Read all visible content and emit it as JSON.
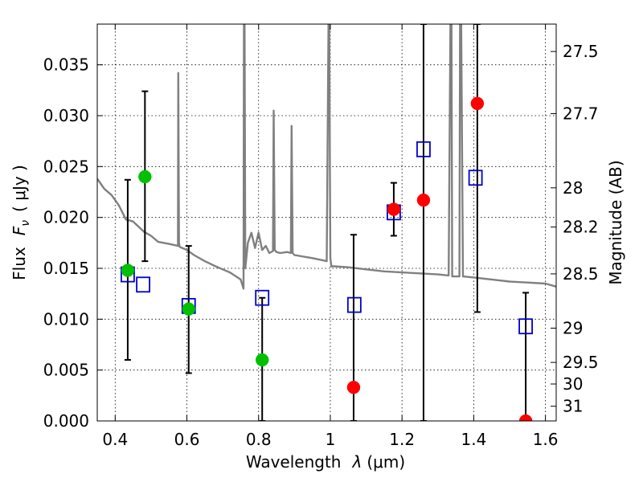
{
  "chart_data": {
    "type": "scatter",
    "title": "",
    "xlabel": "Wavelength  λ (μm)",
    "ylabel": "Flux  F_ν  ( μJy )",
    "ylabel_parts": {
      "flux": "Flux",
      "symbol": "F",
      "sub": "ν",
      "unit": "( μJy )"
    },
    "xlabel_parts": {
      "text": "Wavelength",
      "symbol": "λ",
      "unit": "(μm)"
    },
    "y2label": "Magnitude (AB)",
    "xlim": [
      0.35,
      1.63
    ],
    "ylim": [
      0.0,
      0.039
    ],
    "grid": true,
    "x_ticks": [
      0.4,
      0.6,
      0.8,
      1.0,
      1.2,
      1.4,
      1.6
    ],
    "x_tick_labels": [
      "0.4",
      "0.6",
      "0.8",
      "1",
      "1.2",
      "1.4",
      "1.6"
    ],
    "y_ticks": [
      0.0,
      0.005,
      0.01,
      0.015,
      0.02,
      0.025,
      0.03,
      0.035
    ],
    "y_tick_labels": [
      "0.000",
      "0.005",
      "0.010",
      "0.015",
      "0.020",
      "0.025",
      "0.030",
      "0.035"
    ],
    "y2_ticks": [
      27.5,
      27.7,
      28,
      28.2,
      28.5,
      29,
      29.5,
      30,
      31
    ],
    "y2_tick_labels": [
      "27.5",
      "27.7",
      "28",
      "28.2",
      "28.5",
      "29",
      "29.5",
      "30",
      "31"
    ],
    "series": [
      {
        "name": "model spectrum",
        "type": "line",
        "color": "#808080",
        "x": [
          0.35,
          0.37,
          0.39,
          0.41,
          0.43,
          0.45,
          0.48,
          0.5,
          0.52,
          0.55,
          0.575,
          0.576,
          0.578,
          0.58,
          0.6,
          0.62,
          0.65,
          0.68,
          0.7,
          0.72,
          0.75,
          0.758,
          0.759,
          0.761,
          0.763,
          0.77,
          0.78,
          0.79,
          0.8,
          0.81,
          0.82,
          0.83,
          0.84,
          0.842,
          0.845,
          0.85,
          0.86,
          0.88,
          0.89,
          0.892,
          0.895,
          0.9,
          0.95,
          0.99,
          0.995,
          0.997,
          1.0,
          1.003,
          1.01,
          1.05,
          1.1,
          1.15,
          1.2,
          1.25,
          1.3,
          1.33,
          1.335,
          1.338,
          1.34,
          1.36,
          1.362,
          1.365,
          1.37,
          1.4,
          1.45,
          1.5,
          1.55,
          1.6,
          1.63
        ],
        "y": [
          0.0238,
          0.0228,
          0.0222,
          0.0212,
          0.0198,
          0.0196,
          0.0186,
          0.0182,
          0.0176,
          0.0174,
          0.0172,
          0.0342,
          0.0175,
          0.0171,
          0.0168,
          0.0163,
          0.0157,
          0.0152,
          0.0149,
          0.0146,
          0.0139,
          0.013,
          0.039,
          0.039,
          0.015,
          0.0175,
          0.0185,
          0.017,
          0.0185,
          0.0168,
          0.0172,
          0.0165,
          0.0167,
          0.0305,
          0.0168,
          0.0166,
          0.0165,
          0.0166,
          0.0165,
          0.029,
          0.0165,
          0.0163,
          0.016,
          0.0157,
          0.039,
          0.039,
          0.016,
          0.0152,
          0.0152,
          0.0151,
          0.0149,
          0.0147,
          0.0146,
          0.0145,
          0.0144,
          0.0143,
          0.039,
          0.039,
          0.0142,
          0.0142,
          0.039,
          0.039,
          0.0142,
          0.0141,
          0.0139,
          0.0137,
          0.0136,
          0.0135,
          0.0132
        ]
      },
      {
        "name": "green points",
        "type": "scatter",
        "marker": "circle",
        "color": "#00c000",
        "x": [
          0.435,
          0.483,
          0.605,
          0.81
        ],
        "y": [
          0.0148,
          0.024,
          0.011,
          0.006
        ]
      },
      {
        "name": "red points",
        "type": "scatter",
        "marker": "circle",
        "color": "#ff0000",
        "x": [
          1.065,
          1.177,
          1.26,
          1.41,
          1.545
        ],
        "y": [
          0.0033,
          0.0208,
          0.0217,
          0.0312,
          0.0
        ]
      },
      {
        "name": "model photometry",
        "type": "scatter",
        "marker": "square-open",
        "color": "#0000cc",
        "x": [
          0.435,
          0.478,
          0.605,
          0.81,
          1.067,
          1.177,
          1.26,
          1.405,
          1.545
        ],
        "y": [
          0.0144,
          0.0134,
          0.0113,
          0.0121,
          0.0114,
          0.0205,
          0.0267,
          0.0239,
          0.0093
        ]
      },
      {
        "name": "error bars",
        "type": "errorbar",
        "color": "#000000",
        "x": [
          0.435,
          0.483,
          0.605,
          0.81,
          1.065,
          1.177,
          1.26,
          1.41,
          1.545
        ],
        "y_low": [
          0.006,
          0.0157,
          0.0047,
          0.0,
          0.0,
          0.0182,
          0.0,
          0.0107,
          0.0
        ],
        "y_high": [
          0.0237,
          0.0324,
          0.0172,
          0.0121,
          0.0183,
          0.0234,
          0.039,
          0.039,
          0.0126
        ]
      }
    ]
  }
}
